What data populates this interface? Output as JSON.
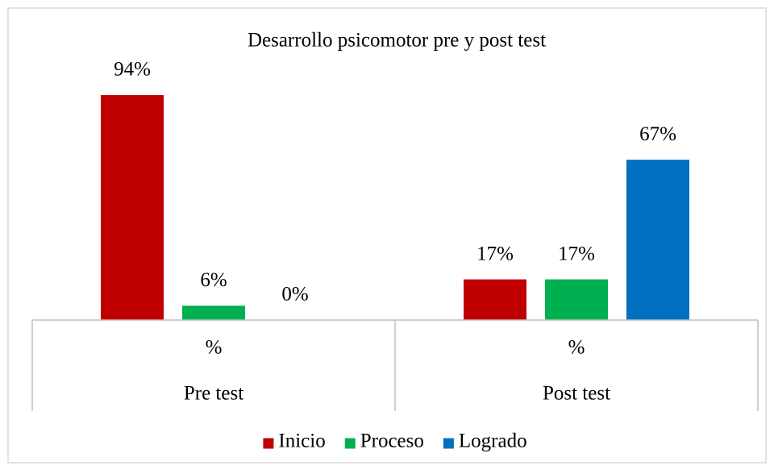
{
  "chart_data": {
    "type": "bar",
    "title": "Desarrollo psicomotor pre y post test",
    "categories": [
      "Pre test",
      "Post test"
    ],
    "subcategories": [
      "%",
      "%"
    ],
    "series": [
      {
        "name": "Inicio",
        "color": "#c00000",
        "values": [
          94,
          17
        ],
        "value_labels": [
          "94%",
          "17%"
        ]
      },
      {
        "name": "Proceso",
        "color": "#00b050",
        "values": [
          6,
          17
        ],
        "value_labels": [
          "6%",
          "17%"
        ]
      },
      {
        "name": "Logrado",
        "color": "#0070c0",
        "values": [
          0,
          67
        ],
        "value_labels": [
          "0%",
          "67%"
        ]
      }
    ],
    "legend": "bottom"
  }
}
